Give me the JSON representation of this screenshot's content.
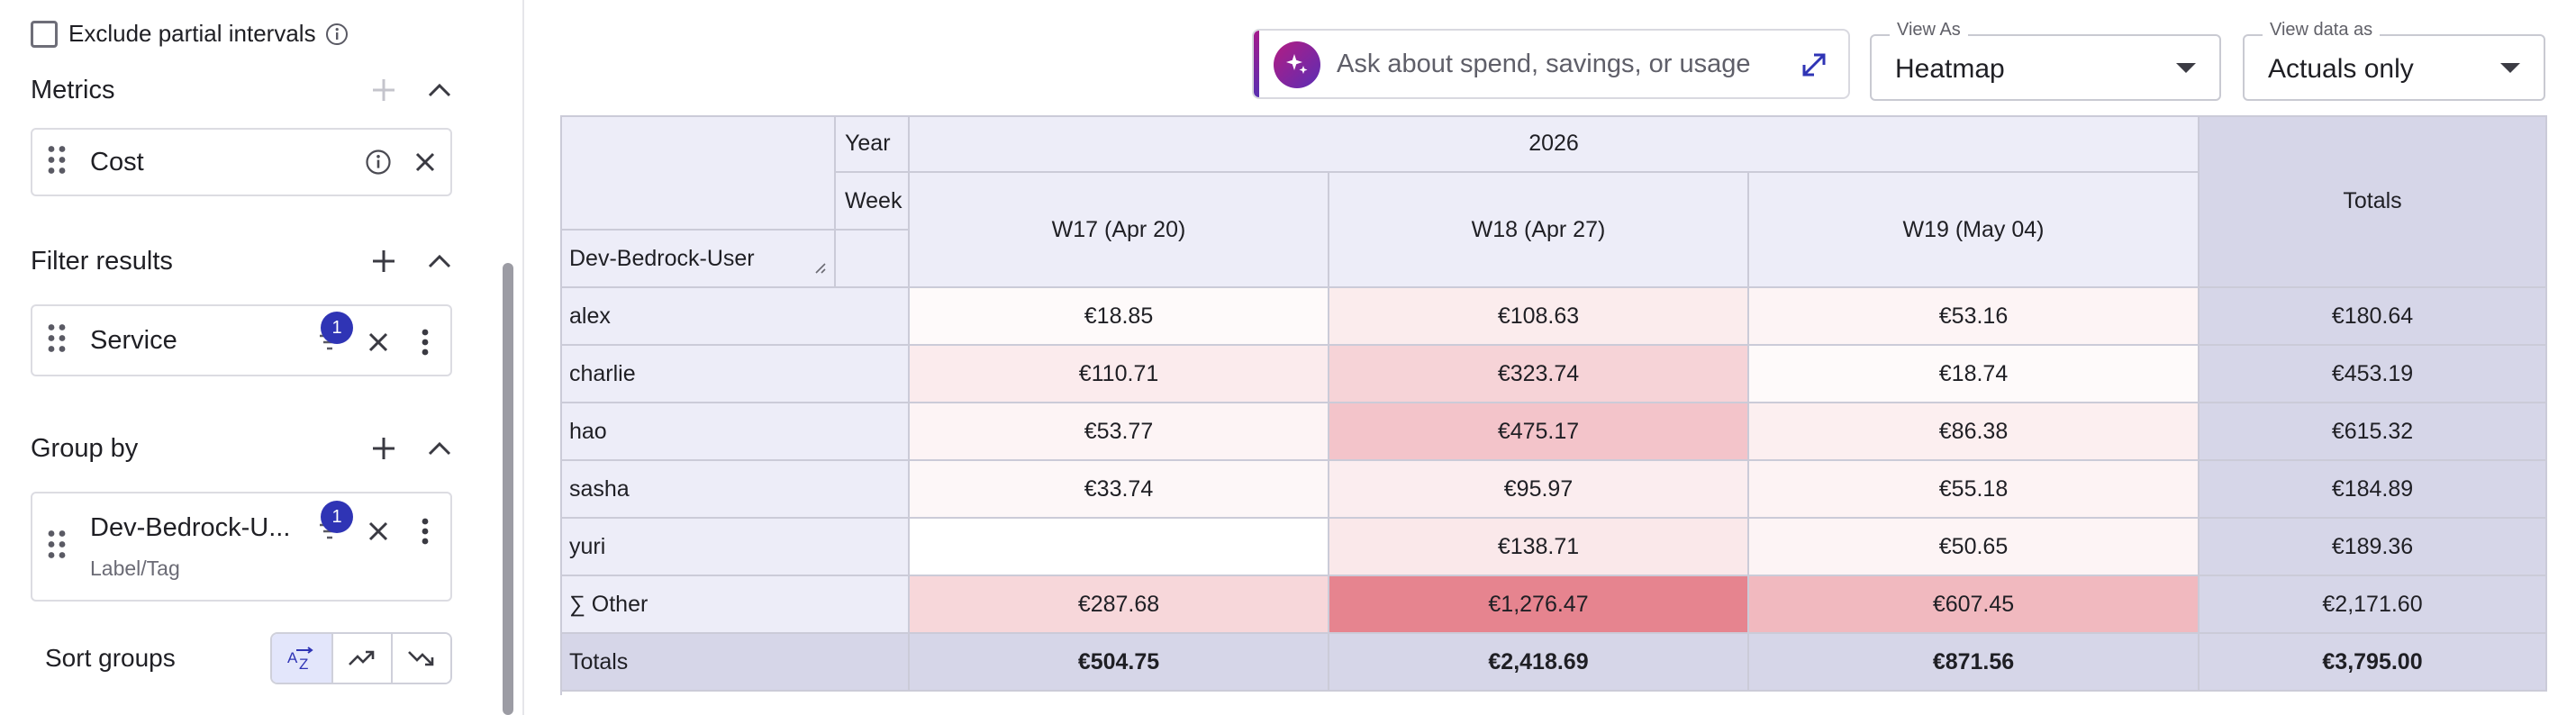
{
  "sidebar": {
    "exclude_partial": {
      "label": "Exclude partial intervals",
      "checked": false
    },
    "metrics": {
      "title": "Metrics",
      "card_label": "Cost"
    },
    "filter": {
      "title": "Filter results",
      "card_label": "Service",
      "badge": "1"
    },
    "group_by": {
      "title": "Group by",
      "card_label": "Dev-Bedrock-U...",
      "card_sub": "Label/Tag",
      "badge": "1"
    },
    "sort": {
      "label": "Sort groups",
      "options": [
        "A-Z",
        "Trending up",
        "Trending down"
      ],
      "active": "A-Z"
    }
  },
  "toolbar": {
    "ask_placeholder": "Ask about spend, savings, or usage",
    "view_as": {
      "legend": "View As",
      "value": "Heatmap"
    },
    "view_data_as": {
      "legend": "View data as",
      "value": "Actuals only"
    }
  },
  "table": {
    "year_label": "Year",
    "week_label": "Week",
    "group_label": "Dev-Bedrock-User",
    "year_value": "2026",
    "totals_label": "Totals",
    "columns": [
      "W17 (Apr 20)",
      "W18 (Apr 27)",
      "W19 (May 04)"
    ],
    "rows": [
      {
        "name": "alex",
        "cells": [
          "€18.85",
          "€108.63",
          "€53.16"
        ],
        "total": "€180.64"
      },
      {
        "name": "charlie",
        "cells": [
          "€110.71",
          "€323.74",
          "€18.74"
        ],
        "total": "€453.19"
      },
      {
        "name": "hao",
        "cells": [
          "€53.77",
          "€475.17",
          "€86.38"
        ],
        "total": "€615.32"
      },
      {
        "name": "sasha",
        "cells": [
          "€33.74",
          "€95.97",
          "€55.18"
        ],
        "total": "€184.89"
      },
      {
        "name": "yuri",
        "cells": [
          "",
          "€138.71",
          "€50.65"
        ],
        "total": "€189.36"
      },
      {
        "name": "∑ Other",
        "cells": [
          "€287.68",
          "€1,276.47",
          "€607.45"
        ],
        "total": "€2,171.60"
      }
    ],
    "heat_values": [
      [
        18.85,
        108.63,
        53.16
      ],
      [
        110.71,
        323.74,
        18.74
      ],
      [
        53.77,
        475.17,
        86.38
      ],
      [
        33.74,
        95.97,
        55.18
      ],
      [
        0,
        138.71,
        50.65
      ],
      [
        287.68,
        1276.47,
        607.45
      ]
    ],
    "totals_row": {
      "label": "Totals",
      "cells": [
        "€504.75",
        "€2,418.69",
        "€871.56"
      ],
      "total": "€3,795.00"
    },
    "heat_color": "#e6848f"
  }
}
